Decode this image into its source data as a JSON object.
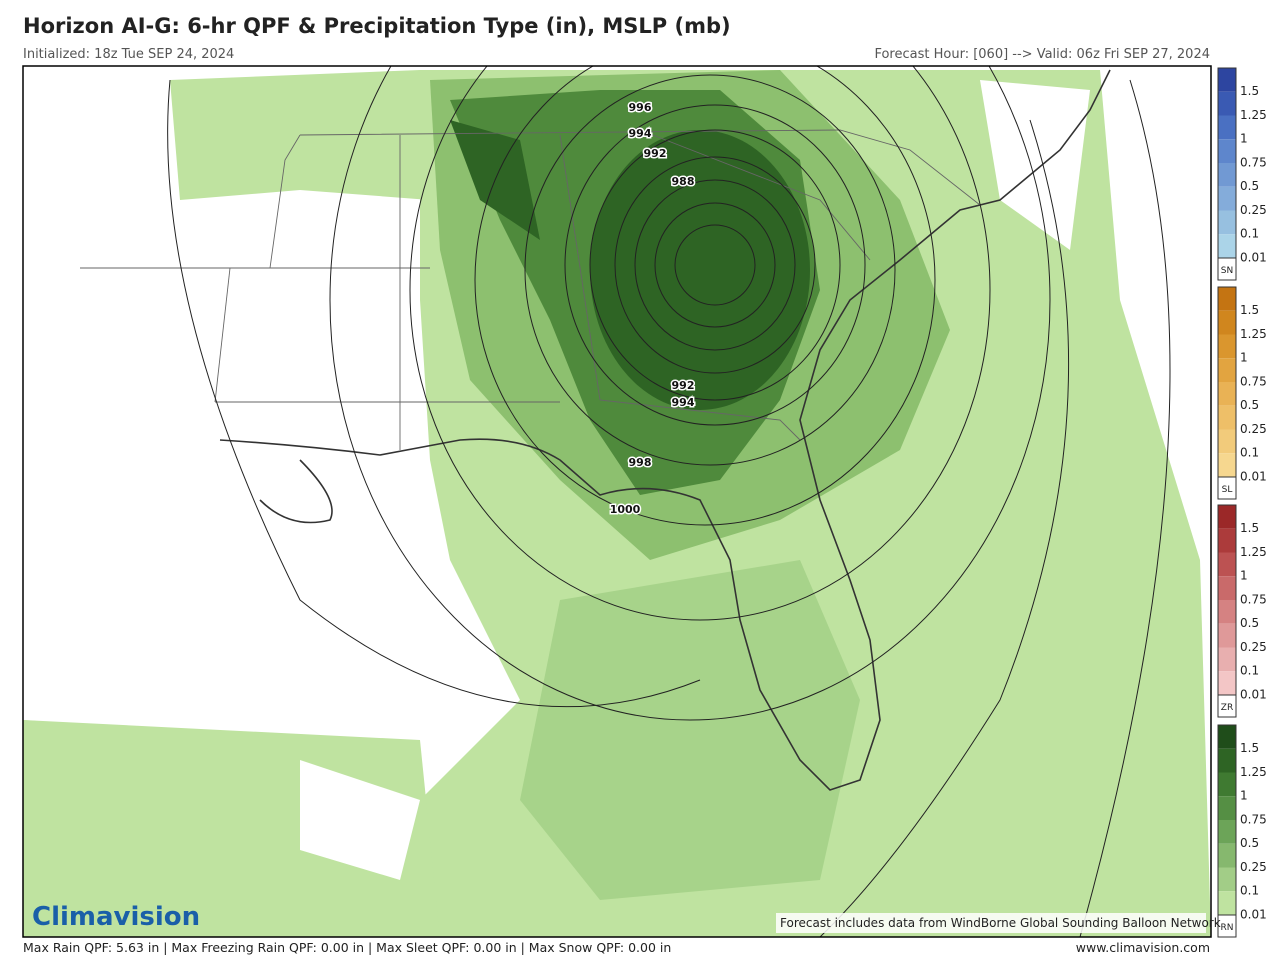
{
  "header": {
    "title": "Horizon AI-G: 6-hr QPF & Precipitation Type (in), MSLP (mb)",
    "initialized": "Initialized: 18z Tue SEP 24, 2024",
    "valid": "Forecast Hour: [060] --> Valid: 06z Fri SEP 27, 2024"
  },
  "isobars": [
    {
      "label": "996"
    },
    {
      "label": "994"
    },
    {
      "label": "992"
    },
    {
      "label": "988"
    },
    {
      "label": "992"
    },
    {
      "label": "994"
    },
    {
      "label": "998"
    },
    {
      "label": "1000"
    }
  ],
  "legend": [
    {
      "type": "SN",
      "ticks": [
        "1.5",
        "1.25",
        "1",
        "0.75",
        "0.5",
        "0.25",
        "0.1",
        "0.01"
      ],
      "colors": [
        "#2d45a0",
        "#3a5ab3",
        "#4a70c2",
        "#5e86cc",
        "#7199d3",
        "#84acda",
        "#97c0e0",
        "#abd4e8"
      ]
    },
    {
      "type": "SL",
      "ticks": [
        "1.5",
        "1.25",
        "1",
        "0.75",
        "0.5",
        "0.25",
        "0.1",
        "0.01"
      ],
      "colors": [
        "#c47412",
        "#d0861e",
        "#da962e",
        "#e2a440",
        "#e9b255",
        "#eebf68",
        "#f2cb7b",
        "#f6d78f"
      ]
    },
    {
      "type": "ZR",
      "ticks": [
        "1.5",
        "1.25",
        "1",
        "0.75",
        "0.5",
        "0.25",
        "0.1",
        "0.01"
      ],
      "colors": [
        "#9b2828",
        "#ac3b3b",
        "#bc5252",
        "#c96a6a",
        "#d58282",
        "#df9999",
        "#e8afaf",
        "#f3c6c6"
      ]
    },
    {
      "type": "RN",
      "ticks": [
        "1.5",
        "1.25",
        "1",
        "0.75",
        "0.5",
        "0.25",
        "0.1",
        "0.01"
      ],
      "colors": [
        "#1f4d1a",
        "#2e6424",
        "#3f7a31",
        "#558f44",
        "#6ca458",
        "#86b86e",
        "#a2cd87",
        "#bfe3a0"
      ]
    }
  ],
  "note": "Forecast includes data from WindBorne Global Sounding Balloon Network",
  "logo": "Climavision",
  "footer": {
    "stats": "Max Rain QPF: 5.63 in  |  Max Freezing Rain QPF: 0.00 in  |  Max Sleet QPF: 0.00 in  |  Max Snow QPF: 0.00 in",
    "url": "www.climavision.com"
  }
}
